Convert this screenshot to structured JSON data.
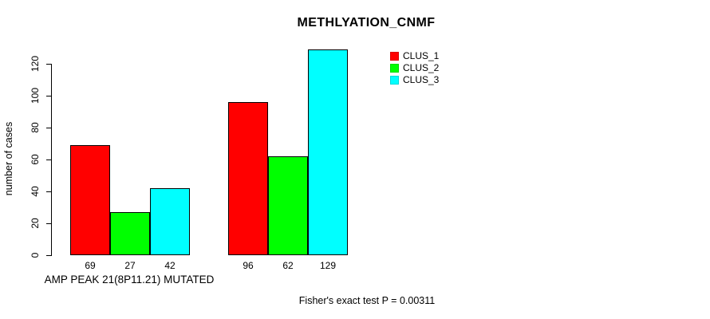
{
  "chart_data": {
    "type": "bar",
    "title": "METHLYATION_CNMF",
    "ylabel": "number of cases",
    "xlabel": "",
    "yticks": [
      0,
      20,
      40,
      60,
      80,
      100,
      120
    ],
    "ylim": [
      0,
      130
    ],
    "grid": false,
    "legend_position": "top-right",
    "categories": [
      "AMP PEAK 21(8P11.21) MUTATED",
      ""
    ],
    "series": [
      {
        "name": "CLUS_1",
        "color": "#ff0000",
        "values": [
          69,
          96
        ]
      },
      {
        "name": "CLUS_2",
        "color": "#00ff00",
        "values": [
          27,
          62
        ]
      },
      {
        "name": "CLUS_3",
        "color": "#00ffff",
        "values": [
          42,
          129
        ]
      }
    ],
    "bar_value_labels": [
      [
        69,
        27,
        42
      ],
      [
        96,
        62,
        129
      ]
    ],
    "annotation": "Fisher's exact test P = 0.00311",
    "axis_color": "#000000",
    "bar_border_color": "#000000"
  }
}
